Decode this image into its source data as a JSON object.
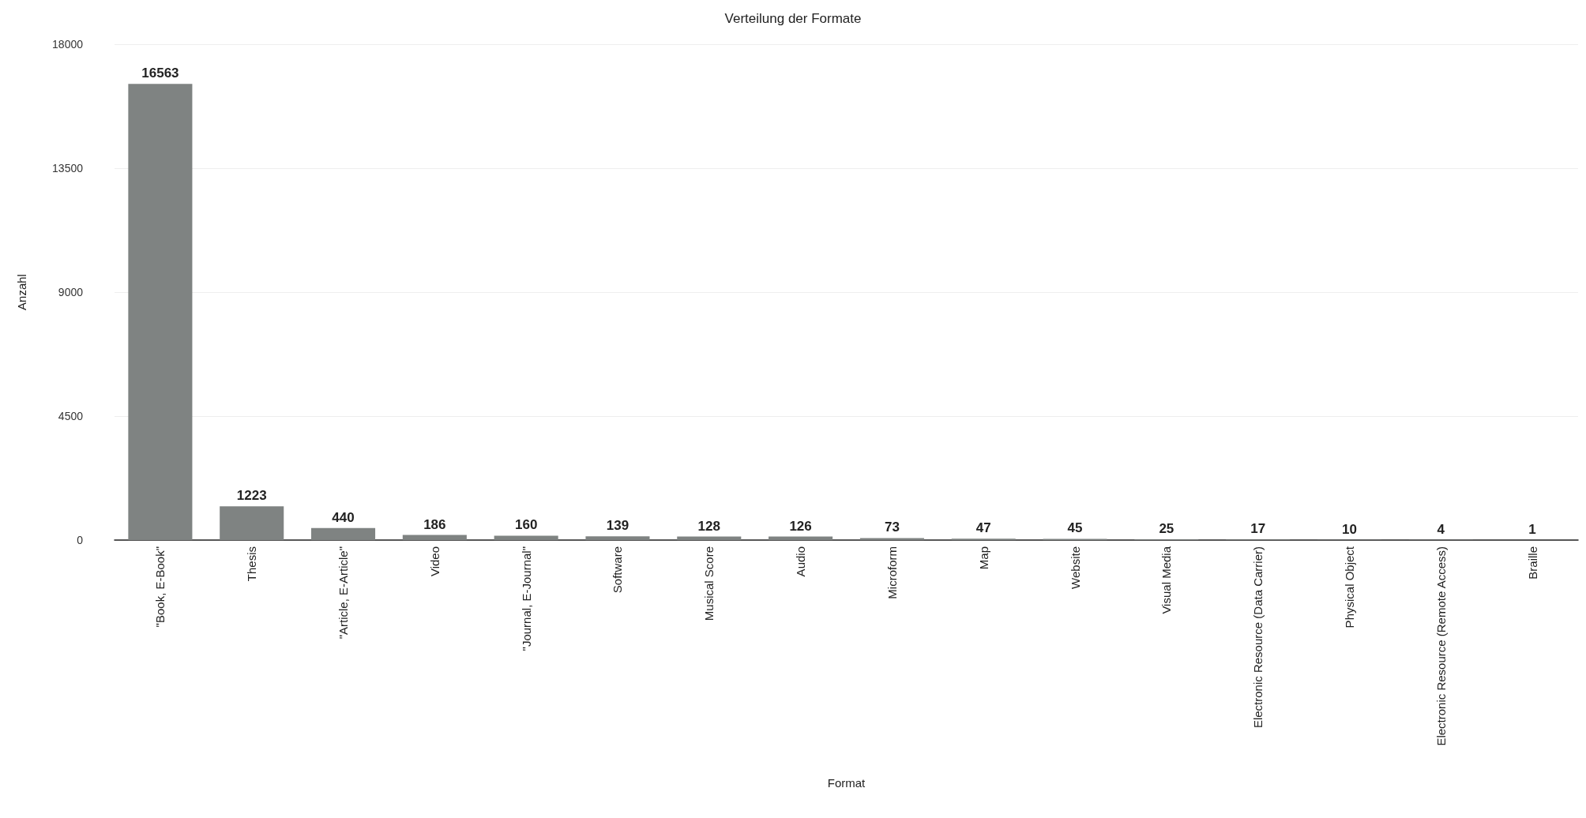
{
  "chart_data": {
    "type": "bar",
    "title": "Verteilung der Formate",
    "xlabel": "Format",
    "ylabel": "Anzahl",
    "categories": [
      "\"Book, E-Book\"",
      "Thesis",
      "\"Article, E-Article\"",
      "Video",
      "\"Journal, E-Journal\"",
      "Software",
      "Musical Score",
      "Audio",
      "Microform",
      "Map",
      "Website",
      "Visual Media",
      "Electronic Resource (Data Carrier)",
      "Physical Object",
      "Electronic Resource (Remote Access)",
      "Braille"
    ],
    "values": [
      16563,
      1223,
      440,
      186,
      160,
      139,
      128,
      126,
      73,
      47,
      45,
      25,
      17,
      10,
      4,
      1
    ],
    "color": "#7f8382",
    "data_labels": true,
    "ylim": [
      0,
      18000
    ],
    "yticks": [
      0,
      4500,
      9000,
      13500,
      18000
    ],
    "grid": "y"
  }
}
